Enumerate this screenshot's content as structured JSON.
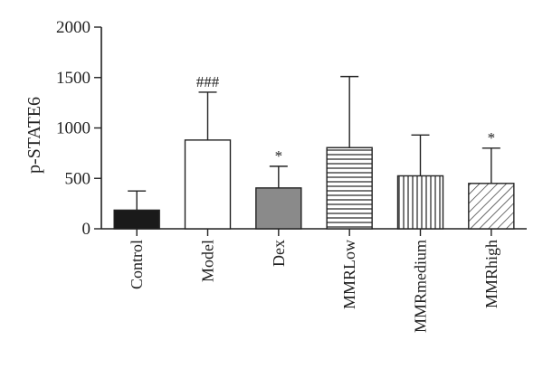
{
  "chart_data": {
    "type": "bar",
    "ylabel": "p-STATE6",
    "xlabel": "",
    "ylim": [
      0,
      2000
    ],
    "yticks": [
      0,
      500,
      1000,
      1500,
      2000
    ],
    "categories": [
      "Control",
      "Model",
      "Dex",
      "MMRLow",
      "MMRmedium",
      "MMRhigh"
    ],
    "values": [
      185,
      880,
      405,
      805,
      525,
      450
    ],
    "error_upper": [
      375,
      1355,
      620,
      1510,
      930,
      800
    ],
    "annotations": [
      "",
      "###",
      "*",
      "",
      "",
      "*"
    ],
    "fills": [
      "solid-black",
      "white",
      "solid-gray",
      "horizontal-lines",
      "vertical-lines",
      "diagonal-lines"
    ],
    "colors": {
      "black": "#1a1a1a",
      "gray": "#8a8a8a",
      "white": "#ffffff",
      "stroke": "#222222"
    },
    "grid": false,
    "legend": "none"
  }
}
